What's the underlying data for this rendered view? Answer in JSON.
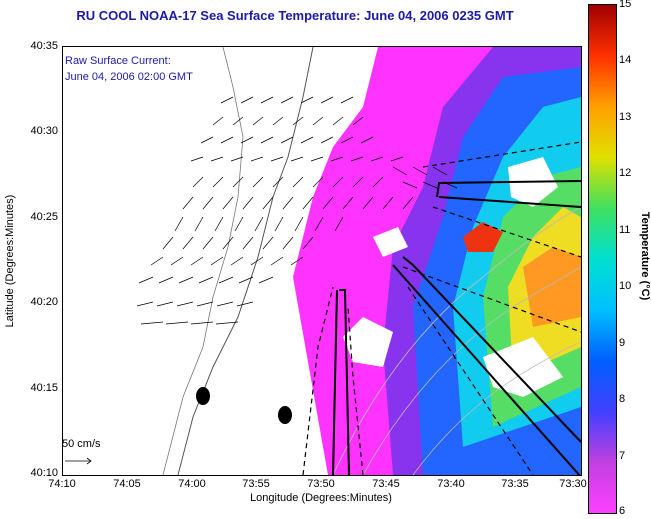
{
  "title": "RU COOL  NOAA-17  Sea Surface Temperature:  June 04, 2006 0235 GMT",
  "legend": {
    "line1": "Raw Surface Current:",
    "line2": "June 04, 2006 02:00 GMT"
  },
  "axes": {
    "xlabel": "Longitude (Degrees:Minutes)",
    "ylabel": "Latitude (Degrees:Minutes)",
    "xticks": [
      "74:10",
      "74:05",
      "74:00",
      "73:55",
      "73:50",
      "73:45",
      "73:40",
      "73:35",
      "73:30"
    ],
    "yticks": [
      "40:35",
      "40:30",
      "40:25",
      "40:20",
      "40:15",
      "40:10"
    ]
  },
  "colorbar": {
    "label": "Temperature (°C)",
    "ticks": [
      "15",
      "14",
      "13",
      "12",
      "11",
      "10",
      "9",
      "8",
      "7",
      "6"
    ]
  },
  "scale": {
    "label": "50 cm/s"
  }
}
